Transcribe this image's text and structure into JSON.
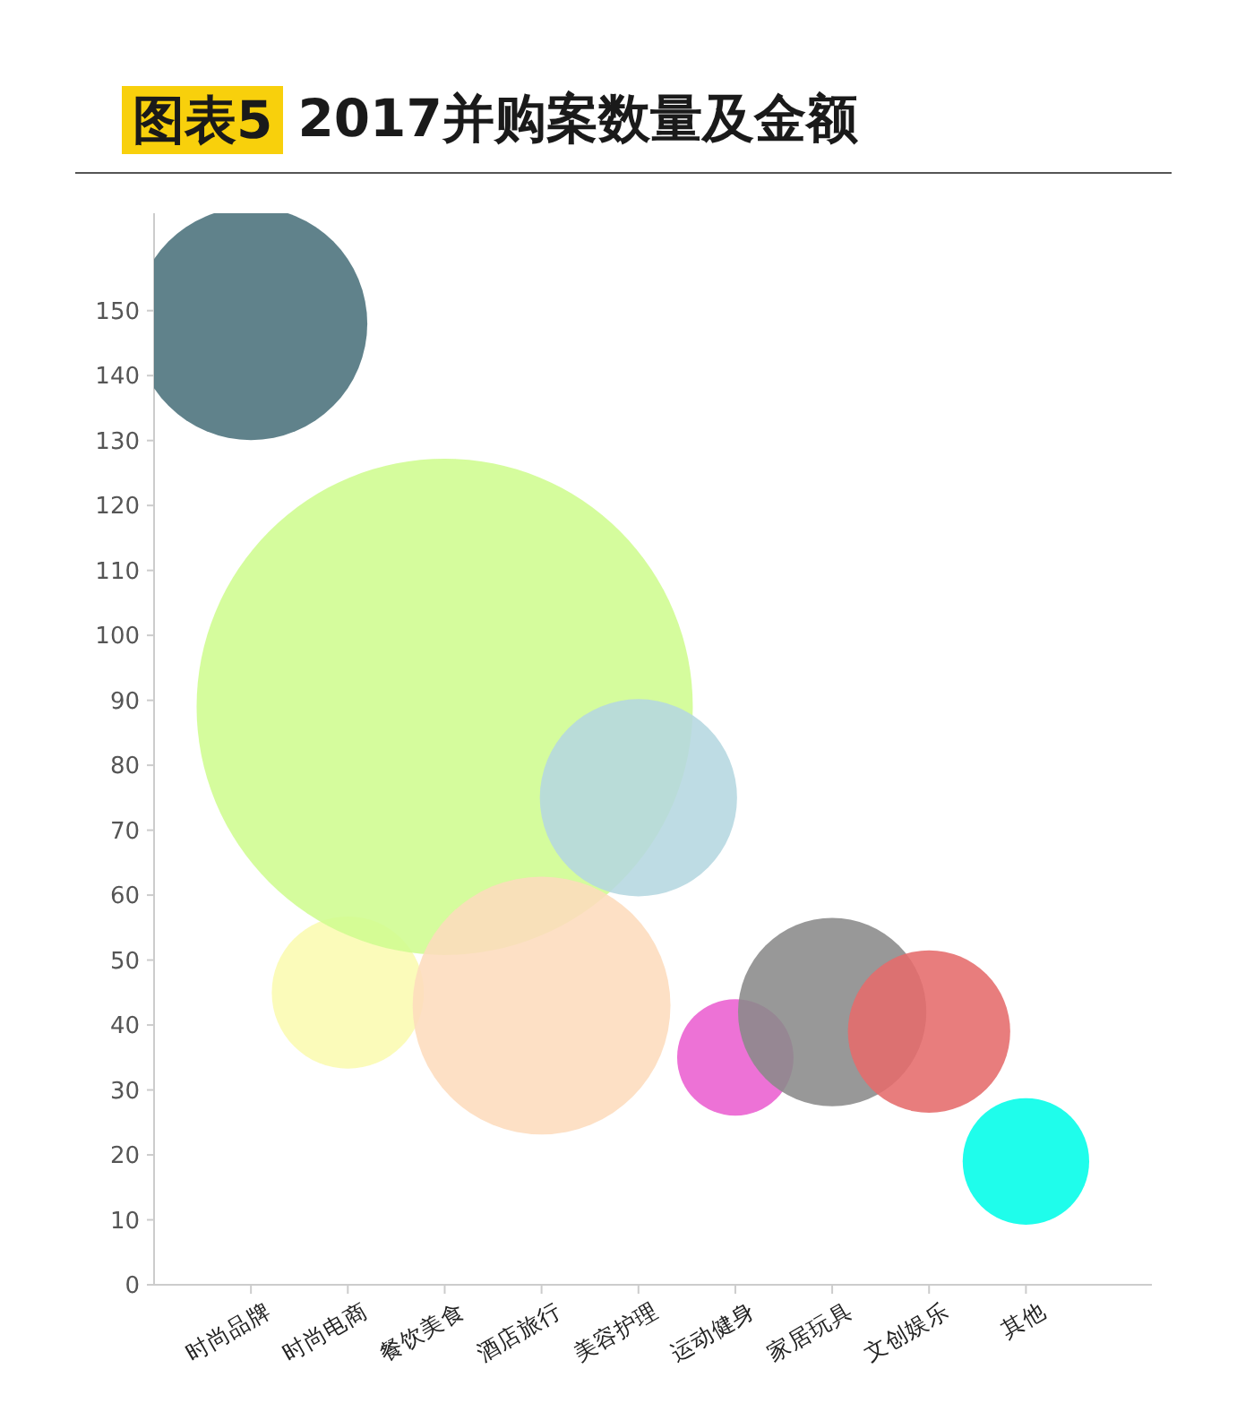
{
  "chart_data": {
    "type": "bubble",
    "title": "图表5 2017并购案数量及金额",
    "categories": [
      "时尚品牌",
      "时尚电商",
      "餐饮美食",
      "酒店旅行",
      "美容护理",
      "运动健身",
      "家居玩具",
      "文创娱乐",
      "其他"
    ],
    "values": [
      148,
      45,
      89,
      43,
      75,
      35,
      42,
      39,
      19
    ],
    "sizes": [
      0.22,
      0.094,
      1,
      0.27,
      0.158,
      0.055,
      0.144,
      0.107,
      0.065
    ],
    "colors": [
      "#4a717b",
      "#fafbb0",
      "#cffc90",
      "#fddcbd",
      "#b5d7e0",
      "#ea5fd0",
      "#8a8a8a",
      "#e56b6b",
      "#00fde8"
    ],
    "ylim": [
      0,
      165
    ],
    "yticks": [
      0,
      10,
      20,
      30,
      40,
      50,
      60,
      70,
      80,
      90,
      100,
      110,
      120,
      130,
      140,
      150
    ]
  }
}
